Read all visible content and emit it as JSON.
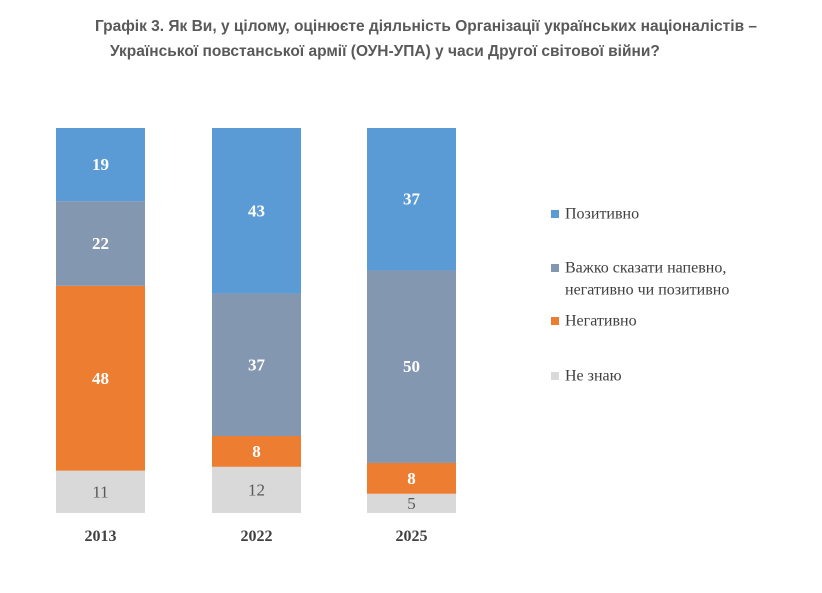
{
  "title": {
    "line1": "Графік 3. Як Ви, у цілому, оцінюєте діяльність Організації українських націоналістів –",
    "line2": "Української повстанської армії (ОУН-УПА) у часи Другої світової війни?"
  },
  "chart_data": {
    "type": "bar",
    "stacked": true,
    "percent_stacked": true,
    "categories": [
      "2013",
      "2022",
      "2025"
    ],
    "series": [
      {
        "name": "Не знаю",
        "values": [
          11,
          12,
          5
        ],
        "color": "#d9d9d9"
      },
      {
        "name": "Негативно",
        "values": [
          48,
          8,
          8
        ],
        "color": "#ed7d31"
      },
      {
        "name": "Важко сказати напевно, негативно чи позитивно",
        "values": [
          22,
          37,
          50
        ],
        "color": "#8497b0"
      },
      {
        "name": "Позитивно",
        "values": [
          19,
          43,
          37
        ],
        "color": "#5b9bd5"
      }
    ],
    "legend": {
      "placement": "right",
      "order": [
        "Позитивно",
        "Важко сказати напевно, негативно чи позитивно",
        "Негативно",
        "Не знаю"
      ],
      "lines": [
        [
          "Позитивно"
        ],
        [
          "Важко сказати напевно,",
          "негативно чи позитивно"
        ],
        [
          "Негативно"
        ],
        [
          "Не знаю"
        ]
      ]
    },
    "data_labels": true,
    "grid": false,
    "axes_visible": false
  }
}
